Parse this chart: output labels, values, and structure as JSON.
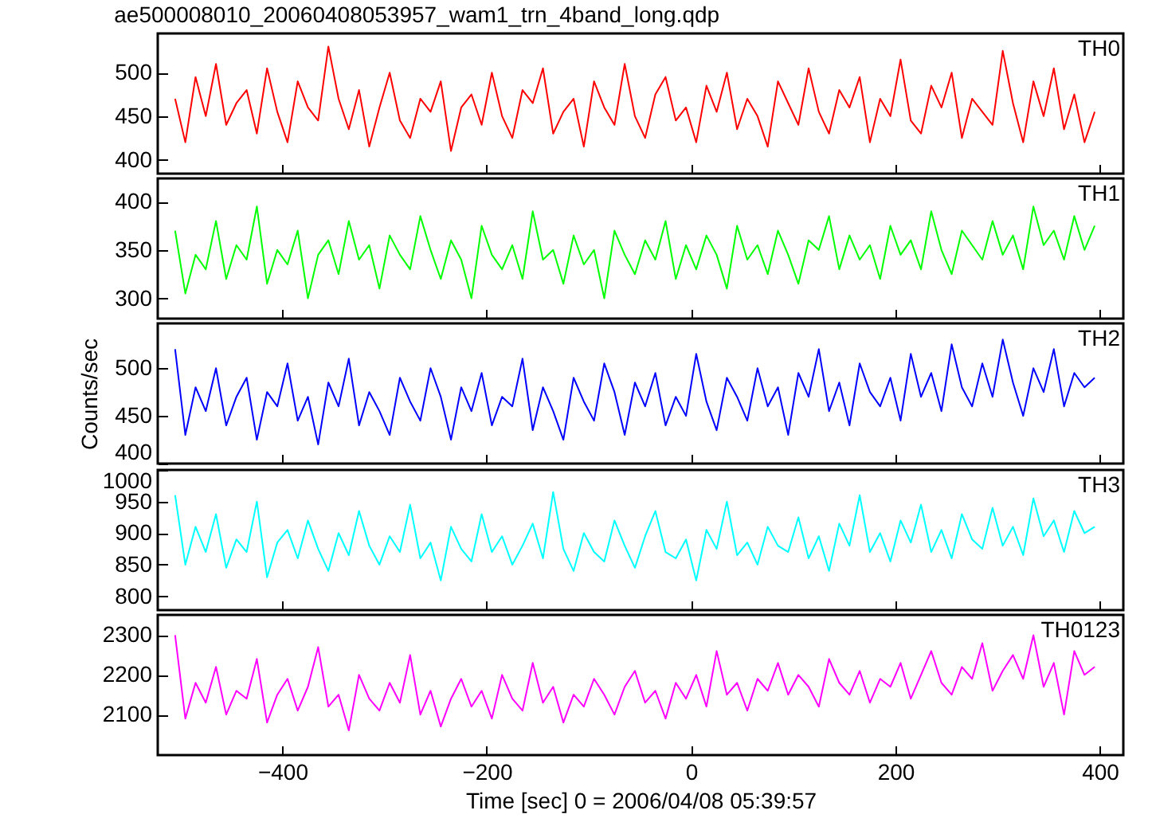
{
  "chart_data": [
    {
      "type": "line",
      "title": "ae500008010_20060408053957_wam1_trn_4band_long.qdp",
      "x": [
        -505,
        -495,
        -485,
        -475,
        -465,
        -455,
        -445,
        -435,
        -425,
        -415,
        -405,
        -395,
        -385,
        -375,
        -365,
        -355,
        -345,
        -335,
        -325,
        -315,
        -305,
        -295,
        -285,
        -275,
        -265,
        -255,
        -245,
        -235,
        -225,
        -215,
        -205,
        -195,
        -185,
        -175,
        -165,
        -155,
        -145,
        -135,
        -125,
        -115,
        -105,
        -95,
        -85,
        -75,
        -65,
        -55,
        -45,
        -35,
        -25,
        -15,
        -5,
        5,
        15,
        25,
        35,
        45,
        55,
        65,
        75,
        85,
        95,
        105,
        115,
        125,
        135,
        145,
        155,
        165,
        175,
        185,
        195,
        205,
        215,
        225,
        235,
        245,
        255,
        265,
        275,
        285,
        295,
        305,
        315,
        325,
        335,
        345,
        355,
        365,
        375,
        385,
        395
      ],
      "series": [
        {
          "name": "TH0",
          "color": "#ff0000",
          "values": [
            470,
            420,
            495,
            450,
            510,
            440,
            465,
            480,
            430,
            505,
            455,
            420,
            490,
            460,
            445,
            530,
            470,
            435,
            480,
            415,
            460,
            500,
            445,
            425,
            470,
            455,
            490,
            410,
            460,
            475,
            440,
            500,
            450,
            425,
            480,
            465,
            505,
            430,
            455,
            470,
            415,
            490,
            460,
            440,
            510,
            450,
            425,
            475,
            495,
            445,
            460,
            420,
            485,
            455,
            500,
            435,
            470,
            450,
            415,
            490,
            465,
            440,
            505,
            455,
            430,
            480,
            460,
            495,
            420,
            470,
            450,
            515,
            445,
            430,
            485,
            460,
            500,
            425,
            470,
            455,
            440,
            525,
            465,
            420,
            490,
            450,
            505,
            435,
            475,
            420,
            455
          ]
        }
      ],
      "xlim": [
        -522,
        423
      ],
      "xticks": [
        -400,
        -200,
        0,
        200,
        400
      ],
      "ylim": [
        384,
        545
      ],
      "yticks": [
        400,
        450,
        500
      ],
      "tick_labels": "y"
    },
    {
      "type": "line",
      "x": [
        -505,
        -495,
        -485,
        -475,
        -465,
        -455,
        -445,
        -435,
        -425,
        -415,
        -405,
        -395,
        -385,
        -375,
        -365,
        -355,
        -345,
        -335,
        -325,
        -315,
        -305,
        -295,
        -285,
        -275,
        -265,
        -255,
        -245,
        -235,
        -225,
        -215,
        -205,
        -195,
        -185,
        -175,
        -165,
        -155,
        -145,
        -135,
        -125,
        -115,
        -105,
        -95,
        -85,
        -75,
        -65,
        -55,
        -45,
        -35,
        -25,
        -15,
        -5,
        5,
        15,
        25,
        35,
        45,
        55,
        65,
        75,
        85,
        95,
        105,
        115,
        125,
        135,
        145,
        155,
        165,
        175,
        185,
        195,
        205,
        215,
        225,
        235,
        245,
        255,
        265,
        275,
        285,
        295,
        305,
        315,
        325,
        335,
        345,
        355,
        365,
        375,
        385,
        395
      ],
      "series": [
        {
          "name": "TH1",
          "color": "#00ff00",
          "values": [
            370,
            305,
            345,
            330,
            380,
            320,
            355,
            340,
            395,
            315,
            350,
            335,
            370,
            300,
            345,
            360,
            325,
            380,
            340,
            355,
            310,
            365,
            345,
            330,
            385,
            350,
            320,
            360,
            340,
            300,
            375,
            345,
            330,
            355,
            320,
            390,
            340,
            350,
            315,
            365,
            335,
            350,
            300,
            370,
            345,
            325,
            360,
            340,
            380,
            320,
            355,
            330,
            365,
            345,
            310,
            375,
            340,
            355,
            325,
            370,
            345,
            315,
            360,
            350,
            385,
            330,
            365,
            340,
            355,
            320,
            375,
            345,
            360,
            330,
            390,
            350,
            325,
            370,
            355,
            340,
            380,
            345,
            365,
            330,
            395,
            355,
            370,
            340,
            385,
            350,
            375
          ]
        }
      ],
      "xlim": [
        -522,
        423
      ],
      "xticks": [
        -400,
        -200,
        0,
        200,
        400
      ],
      "ylim": [
        279,
        424
      ],
      "yticks": [
        300,
        350,
        400
      ],
      "tick_labels": "y"
    },
    {
      "type": "line",
      "ylabel": "Counts/sec",
      "x": [
        -505,
        -495,
        -485,
        -475,
        -465,
        -455,
        -445,
        -435,
        -425,
        -415,
        -405,
        -395,
        -385,
        -375,
        -365,
        -355,
        -345,
        -335,
        -325,
        -315,
        -305,
        -295,
        -285,
        -275,
        -265,
        -255,
        -245,
        -235,
        -225,
        -215,
        -205,
        -195,
        -185,
        -175,
        -165,
        -155,
        -145,
        -135,
        -125,
        -115,
        -105,
        -95,
        -85,
        -75,
        -65,
        -55,
        -45,
        -35,
        -25,
        -15,
        -5,
        5,
        15,
        25,
        35,
        45,
        55,
        65,
        75,
        85,
        95,
        105,
        115,
        125,
        135,
        145,
        155,
        165,
        175,
        185,
        195,
        205,
        215,
        225,
        235,
        245,
        255,
        265,
        275,
        285,
        295,
        305,
        315,
        325,
        335,
        345,
        355,
        365,
        375,
        385,
        395
      ],
      "series": [
        {
          "name": "TH2",
          "color": "#0000ff",
          "values": [
            520,
            430,
            480,
            455,
            500,
            440,
            470,
            490,
            425,
            475,
            460,
            505,
            445,
            470,
            420,
            485,
            460,
            510,
            440,
            475,
            455,
            430,
            490,
            465,
            445,
            500,
            470,
            425,
            480,
            455,
            495,
            440,
            470,
            460,
            510,
            435,
            480,
            455,
            425,
            490,
            465,
            445,
            505,
            475,
            430,
            485,
            460,
            495,
            440,
            470,
            450,
            515,
            465,
            435,
            490,
            470,
            445,
            500,
            460,
            480,
            430,
            495,
            470,
            520,
            455,
            485,
            440,
            505,
            475,
            460,
            490,
            445,
            515,
            470,
            495,
            455,
            525,
            480,
            460,
            505,
            470,
            530,
            485,
            450,
            500,
            475,
            520,
            460,
            495,
            480,
            490
          ]
        }
      ],
      "xlim": [
        -522,
        423
      ],
      "xticks": [
        -400,
        -200,
        0,
        200,
        400
      ],
      "ylim": [
        400,
        547
      ],
      "yticks": [
        400,
        450,
        500
      ],
      "tick_labels": "y"
    },
    {
      "type": "line",
      "x": [
        -505,
        -495,
        -485,
        -475,
        -465,
        -455,
        -445,
        -435,
        -425,
        -415,
        -405,
        -395,
        -385,
        -375,
        -365,
        -355,
        -345,
        -335,
        -325,
        -315,
        -305,
        -295,
        -285,
        -275,
        -265,
        -255,
        -245,
        -235,
        -225,
        -215,
        -205,
        -195,
        -185,
        -175,
        -165,
        -155,
        -145,
        -135,
        -125,
        -115,
        -105,
        -95,
        -85,
        -75,
        -65,
        -55,
        -45,
        -35,
        -25,
        -15,
        -5,
        5,
        15,
        25,
        35,
        45,
        55,
        65,
        75,
        85,
        95,
        105,
        115,
        125,
        135,
        145,
        155,
        165,
        175,
        185,
        195,
        205,
        215,
        225,
        235,
        245,
        255,
        265,
        275,
        285,
        295,
        305,
        315,
        325,
        335,
        345,
        355,
        365,
        375,
        385,
        395
      ],
      "series": [
        {
          "name": "TH3",
          "color": "#00ffff",
          "values": [
            960,
            850,
            910,
            870,
            930,
            845,
            890,
            870,
            950,
            830,
            885,
            905,
            860,
            920,
            875,
            840,
            900,
            865,
            935,
            880,
            850,
            895,
            870,
            945,
            860,
            885,
            825,
            910,
            875,
            855,
            930,
            870,
            895,
            850,
            880,
            915,
            860,
            965,
            875,
            840,
            900,
            870,
            855,
            920,
            880,
            845,
            895,
            935,
            870,
            860,
            890,
            825,
            905,
            875,
            950,
            865,
            885,
            850,
            910,
            880,
            870,
            925,
            860,
            895,
            840,
            915,
            880,
            960,
            870,
            900,
            855,
            920,
            885,
            945,
            870,
            905,
            860,
            930,
            890,
            875,
            940,
            880,
            910,
            865,
            955,
            895,
            920,
            870,
            935,
            900,
            910
          ]
        }
      ],
      "xlim": [
        -522,
        423
      ],
      "xticks": [
        -400,
        -200,
        0,
        200,
        400
      ],
      "ylim": [
        778,
        1000
      ],
      "yticks": [
        800,
        850,
        900,
        950,
        1000
      ],
      "tick_labels": "y"
    },
    {
      "type": "line",
      "xlabel": "Time [sec] 0 = 2006/04/08 05:39:57",
      "x": [
        -505,
        -495,
        -485,
        -475,
        -465,
        -455,
        -445,
        -435,
        -425,
        -415,
        -405,
        -395,
        -385,
        -375,
        -365,
        -355,
        -345,
        -335,
        -325,
        -315,
        -305,
        -295,
        -285,
        -275,
        -265,
        -255,
        -245,
        -235,
        -225,
        -215,
        -205,
        -195,
        -185,
        -175,
        -165,
        -155,
        -145,
        -135,
        -125,
        -115,
        -105,
        -95,
        -85,
        -75,
        -65,
        -55,
        -45,
        -35,
        -25,
        -15,
        -5,
        5,
        15,
        25,
        35,
        45,
        55,
        65,
        75,
        85,
        95,
        105,
        115,
        125,
        135,
        145,
        155,
        165,
        175,
        185,
        195,
        205,
        215,
        225,
        235,
        245,
        255,
        265,
        275,
        285,
        295,
        305,
        315,
        325,
        335,
        345,
        355,
        365,
        375,
        385,
        395
      ],
      "series": [
        {
          "name": "TH0123",
          "color": "#ff00ff",
          "values": [
            2300,
            2090,
            2180,
            2130,
            2220,
            2100,
            2160,
            2140,
            2240,
            2080,
            2150,
            2190,
            2110,
            2170,
            2270,
            2120,
            2150,
            2060,
            2200,
            2140,
            2110,
            2180,
            2130,
            2250,
            2100,
            2160,
            2070,
            2140,
            2190,
            2120,
            2160,
            2090,
            2200,
            2140,
            2110,
            2230,
            2130,
            2170,
            2080,
            2150,
            2120,
            2190,
            2150,
            2100,
            2170,
            2210,
            2130,
            2160,
            2090,
            2180,
            2140,
            2200,
            2120,
            2260,
            2150,
            2180,
            2110,
            2190,
            2160,
            2230,
            2150,
            2200,
            2170,
            2120,
            2240,
            2180,
            2150,
            2210,
            2130,
            2190,
            2170,
            2230,
            2140,
            2200,
            2260,
            2180,
            2150,
            2220,
            2190,
            2280,
            2160,
            2210,
            2250,
            2190,
            2300,
            2170,
            2230,
            2100,
            2260,
            2200,
            2220
          ]
        }
      ],
      "xlim": [
        -522,
        423
      ],
      "xticks": [
        -400,
        -200,
        0,
        200,
        400
      ],
      "ylim": [
        1998,
        2351
      ],
      "yticks": [
        2100,
        2200,
        2300
      ]
    }
  ]
}
